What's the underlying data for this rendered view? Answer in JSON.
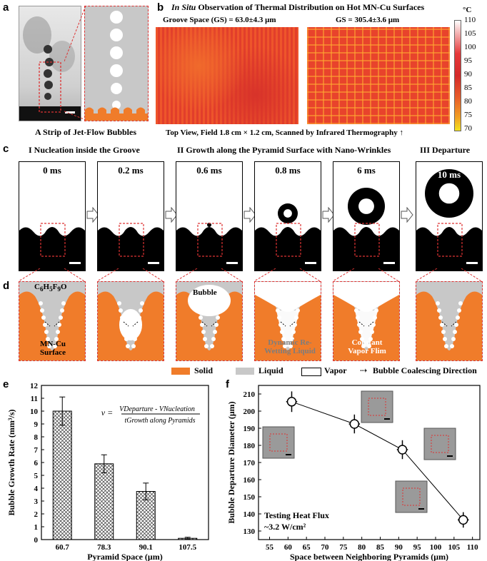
{
  "panel_a": {
    "label": "a",
    "caption": "A Strip of Jet-Flow Bubbles"
  },
  "panel_b": {
    "label": "b",
    "title_italic": "In Situ",
    "title_rest": " Observation of Thermal Distribution on Hot MN-Cu Surfaces",
    "left_header": "Groove Space (GS) = 63.0±4.3 μm",
    "right_header": "GS = 305.4±3.6 μm",
    "caption": "Top View, Field 1.8 cm × 1.2 cm, Scanned by Infrared Thermography ↑",
    "colorbar_unit": "°C",
    "colorbar_ticks": [
      "110",
      "105",
      "100",
      "95",
      "90",
      "85",
      "80",
      "75",
      "70"
    ]
  },
  "panel_c": {
    "label": "c",
    "stage_1": "I Nucleation inside the Groove",
    "stage_2": "II Growth along the Pyramid Surface with Nano-Wrinkles",
    "stage_3": "III Departure",
    "times": [
      "0 ms",
      "0.2 ms",
      "0.6 ms",
      "0.8 ms",
      "6 ms",
      "10 ms"
    ]
  },
  "panel_d": {
    "label": "d",
    "formula": "C6H5F9O",
    "formula_parts": {
      "c": "C",
      "c_sub": "6",
      "h": "H",
      "h_sub": "5",
      "f": "F",
      "f_sub": "9",
      "o": "O"
    },
    "surface_label": "MN-Cu\nSurface",
    "bubble_label": "Bubble",
    "rewetting_label": "Dynamic Re-\nWetting Liquid",
    "vapor_film_label": "Constant\nVapor Flim",
    "legend": {
      "solid": "Solid",
      "liquid": "Liquid",
      "vapor": "Vapor",
      "direction": "Bubble Coalescing Direction"
    },
    "colors": {
      "solid": "#f07c2a",
      "liquid": "#c8c8c8",
      "vapor": "#ffffff"
    }
  },
  "chart_data": [
    {
      "label": "e",
      "type": "bar",
      "categories": [
        "60.7",
        "78.3",
        "90.1",
        "107.5"
      ],
      "values": [
        10.0,
        5.9,
        3.75,
        0.1
      ],
      "errors": [
        1.1,
        0.7,
        0.65,
        0.08
      ],
      "ylabel": "Bubble Growth Rate (mm³/s)",
      "xlabel": "Pyramid Space (μm)",
      "ylim": [
        0,
        12
      ],
      "yticks": [
        "0",
        "1",
        "2",
        "3",
        "4",
        "5",
        "6",
        "7",
        "8",
        "9",
        "10",
        "11",
        "12"
      ],
      "formula_lhs": "v =",
      "formula_num": "VDeparture - VNucleation",
      "formula_den": "tGrowth along Pyramids"
    },
    {
      "label": "f",
      "type": "line",
      "x": [
        61,
        78,
        91,
        107.5
      ],
      "y": [
        205.5,
        192.5,
        177.5,
        136.5
      ],
      "xerr": [
        1.5,
        1.5,
        1.5,
        1.5
      ],
      "yerr": [
        6,
        5.5,
        5.5,
        4.5
      ],
      "xlabel": "Space between Neighboring Pyramids (μm)",
      "ylabel": "Bubble Departure Diameter (μm)",
      "xlim": [
        52,
        112
      ],
      "ylim": [
        125,
        215
      ],
      "xticks": [
        "55",
        "60",
        "65",
        "70",
        "75",
        "80",
        "85",
        "90",
        "95",
        "100",
        "105",
        "110"
      ],
      "yticks": [
        "130",
        "140",
        "150",
        "160",
        "170",
        "180",
        "190",
        "200",
        "210"
      ],
      "annotation_line1": "Testing Heat Flux",
      "annotation_line2": "~3.2 W/cm²"
    }
  ]
}
